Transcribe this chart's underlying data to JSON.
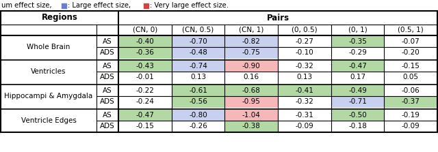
{
  "col_header1": "Pairs",
  "col_header2": [
    "(CN, 0)",
    "(CN, 0.5)",
    "(CN, 1)",
    "(0, 0.5)",
    "(0, 1)",
    "(0.5, 1)"
  ],
  "row_groups": [
    {
      "region": "Whole Brain",
      "rows": [
        {
          "label": "AS",
          "values": [
            "-0.40",
            "-0.70",
            "-0.82",
            "-0.27",
            "-0.35",
            "-0.07"
          ]
        },
        {
          "label": "ADS",
          "values": [
            "-0.36",
            "-0.48",
            "-0.75",
            "-0.10",
            "-0.29",
            "-0.20"
          ]
        }
      ]
    },
    {
      "region": "Ventricles",
      "rows": [
        {
          "label": "AS",
          "values": [
            "-0.43",
            "-0.74",
            "-0.90",
            "-0.32",
            "-0.47",
            "-0.15"
          ]
        },
        {
          "label": "ADS",
          "values": [
            "-0.01",
            "0.13",
            "0.16",
            "0.13",
            "0.17",
            "0.05"
          ]
        }
      ]
    },
    {
      "region": "Hippocampi & Amygdala",
      "rows": [
        {
          "label": "AS",
          "values": [
            "-0.22",
            "-0.61",
            "-0.68",
            "-0.41",
            "-0.49",
            "-0.06"
          ]
        },
        {
          "label": "ADS",
          "values": [
            "-0.24",
            "-0.56",
            "-0.95",
            "-0.32",
            "-0.71",
            "-0.37"
          ]
        }
      ]
    },
    {
      "region": "Ventricle Edges",
      "rows": [
        {
          "label": "AS",
          "values": [
            "-0.47",
            "-0.80",
            "-1.04",
            "-0.31",
            "-0.50",
            "-0.19"
          ]
        },
        {
          "label": "ADS",
          "values": [
            "-0.15",
            "-0.26",
            "-0.38",
            "-0.09",
            "-0.18",
            "-0.09"
          ]
        }
      ]
    }
  ],
  "cell_colors": [
    [
      [
        "#b2d9a4",
        "#c8d0f0",
        "#c8d0f0",
        "#ffffff",
        "#b2d9a4",
        "#ffffff"
      ],
      [
        "#b2d9a4",
        "#c8d0f0",
        "#c8d0f0",
        "#ffffff",
        "#ffffff",
        "#ffffff"
      ]
    ],
    [
      [
        "#b2d9a4",
        "#c8d0f0",
        "#f5b8b8",
        "#ffffff",
        "#b2d9a4",
        "#ffffff"
      ],
      [
        "#ffffff",
        "#ffffff",
        "#ffffff",
        "#ffffff",
        "#ffffff",
        "#ffffff"
      ]
    ],
    [
      [
        "#ffffff",
        "#b2d9a4",
        "#b2d9a4",
        "#b2d9a4",
        "#b2d9a4",
        "#ffffff"
      ],
      [
        "#ffffff",
        "#b2d9a4",
        "#f5b8b8",
        "#ffffff",
        "#c8d0f0",
        "#b2d9a4"
      ]
    ],
    [
      [
        "#b2d9a4",
        "#c8d0f0",
        "#f5b8b8",
        "#ffffff",
        "#b2d9a4",
        "#ffffff"
      ],
      [
        "#ffffff",
        "#ffffff",
        "#b2d9a4",
        "#ffffff",
        "#ffffff",
        "#ffffff"
      ]
    ]
  ],
  "green_color": "#b2d9a4",
  "blue_color": "#c8d0f0",
  "red_color": "#f5b8b8",
  "legend_blue": "#6a7fcc",
  "legend_red": "#cc4444",
  "legend_green": "#5aaa44",
  "figw": 6.4,
  "figh": 2.23,
  "dpi": 100
}
